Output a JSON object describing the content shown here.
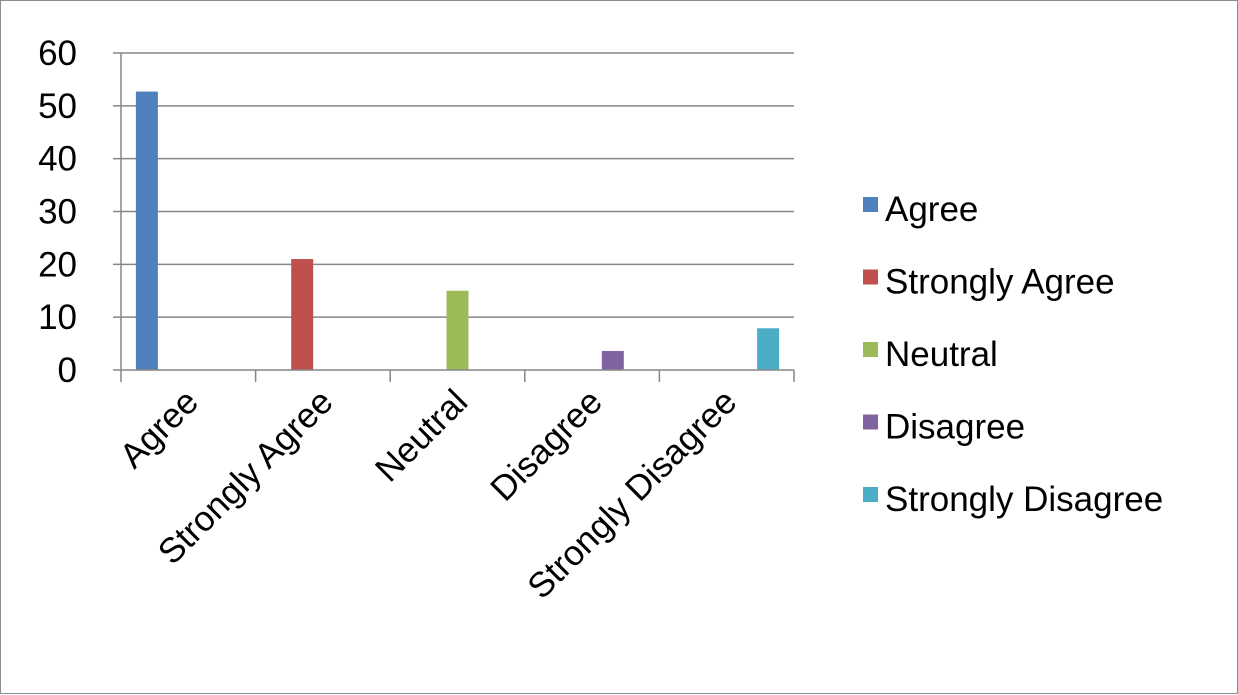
{
  "chart_data": {
    "type": "bar",
    "categories": [
      "Agree",
      "Strongly Agree",
      "Neutral",
      "Disagree",
      "Strongly Disagree"
    ],
    "series": [
      {
        "name": "Agree",
        "color": "#4F81BD",
        "values": [
          52.7,
          null,
          null,
          null,
          null
        ]
      },
      {
        "name": "Strongly Agree",
        "color": "#C0504D",
        "values": [
          null,
          21,
          null,
          null,
          null
        ]
      },
      {
        "name": "Neutral",
        "color": "#9BBB59",
        "values": [
          null,
          null,
          15,
          null,
          null
        ]
      },
      {
        "name": "Disagree",
        "color": "#8064A2",
        "values": [
          null,
          null,
          null,
          3.6,
          null
        ]
      },
      {
        "name": "Strongly Disagree",
        "color": "#4BACC6",
        "values": [
          null,
          null,
          null,
          null,
          7.9
        ]
      }
    ],
    "yticks": [
      "0",
      "10",
      "20",
      "30",
      "40",
      "50",
      "60"
    ],
    "ylim": [
      0,
      60
    ],
    "title": "",
    "xlabel": "",
    "ylabel": "",
    "grid": "horizontal",
    "legend_position": "right"
  }
}
